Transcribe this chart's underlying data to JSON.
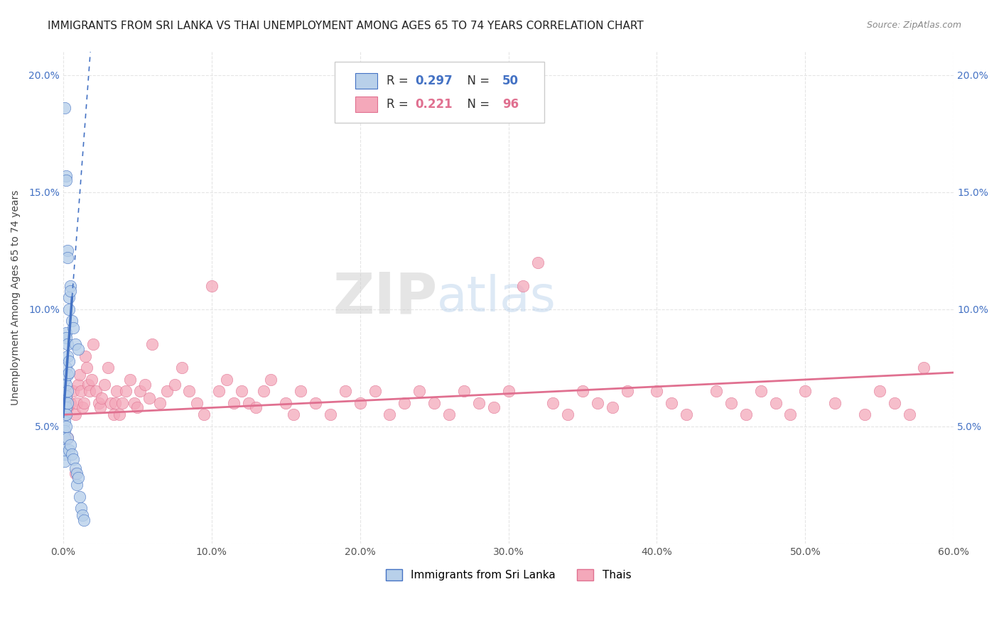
{
  "title": "IMMIGRANTS FROM SRI LANKA VS THAI UNEMPLOYMENT AMONG AGES 65 TO 74 YEARS CORRELATION CHART",
  "source": "Source: ZipAtlas.com",
  "ylabel": "Unemployment Among Ages 65 to 74 years",
  "xlim": [
    0.0,
    0.6
  ],
  "ylim": [
    0.0,
    0.21
  ],
  "xticks": [
    0.0,
    0.1,
    0.2,
    0.3,
    0.4,
    0.5,
    0.6
  ],
  "xticklabels": [
    "0.0%",
    "10.0%",
    "20.0%",
    "30.0%",
    "40.0%",
    "50.0%",
    "60.0%"
  ],
  "yticks": [
    0.0,
    0.05,
    0.1,
    0.15,
    0.2
  ],
  "yticklabels": [
    "",
    "5.0%",
    "10.0%",
    "15.0%",
    "20.0%"
  ],
  "blue_r": "0.297",
  "blue_n": "50",
  "pink_r": "0.221",
  "pink_n": "96",
  "blue_scatter_x": [
    0.001,
    0.001,
    0.001,
    0.001,
    0.001,
    0.001,
    0.001,
    0.001,
    0.001,
    0.001,
    0.002,
    0.002,
    0.002,
    0.002,
    0.002,
    0.002,
    0.002,
    0.002,
    0.002,
    0.002,
    0.003,
    0.003,
    0.003,
    0.003,
    0.003,
    0.003,
    0.003,
    0.003,
    0.004,
    0.004,
    0.004,
    0.004,
    0.004,
    0.005,
    0.005,
    0.005,
    0.006,
    0.006,
    0.007,
    0.007,
    0.008,
    0.008,
    0.009,
    0.009,
    0.01,
    0.01,
    0.011,
    0.012,
    0.013,
    0.014
  ],
  "blue_scatter_y": [
    0.186,
    0.07,
    0.06,
    0.055,
    0.052,
    0.048,
    0.045,
    0.04,
    0.038,
    0.035,
    0.157,
    0.155,
    0.09,
    0.088,
    0.075,
    0.068,
    0.063,
    0.058,
    0.055,
    0.05,
    0.125,
    0.122,
    0.085,
    0.08,
    0.072,
    0.065,
    0.06,
    0.045,
    0.105,
    0.1,
    0.078,
    0.073,
    0.04,
    0.11,
    0.108,
    0.042,
    0.095,
    0.038,
    0.092,
    0.036,
    0.085,
    0.032,
    0.03,
    0.025,
    0.083,
    0.028,
    0.02,
    0.015,
    0.012,
    0.01
  ],
  "pink_scatter_x": [
    0.002,
    0.003,
    0.005,
    0.007,
    0.008,
    0.009,
    0.01,
    0.011,
    0.012,
    0.013,
    0.014,
    0.015,
    0.016,
    0.017,
    0.018,
    0.019,
    0.02,
    0.022,
    0.024,
    0.025,
    0.026,
    0.028,
    0.03,
    0.032,
    0.034,
    0.035,
    0.036,
    0.038,
    0.04,
    0.042,
    0.045,
    0.048,
    0.05,
    0.052,
    0.055,
    0.058,
    0.06,
    0.065,
    0.07,
    0.075,
    0.08,
    0.085,
    0.09,
    0.095,
    0.1,
    0.105,
    0.11,
    0.115,
    0.12,
    0.125,
    0.13,
    0.135,
    0.14,
    0.15,
    0.155,
    0.16,
    0.17,
    0.18,
    0.19,
    0.2,
    0.21,
    0.22,
    0.23,
    0.24,
    0.25,
    0.26,
    0.27,
    0.28,
    0.29,
    0.3,
    0.31,
    0.32,
    0.33,
    0.34,
    0.35,
    0.36,
    0.37,
    0.38,
    0.4,
    0.41,
    0.42,
    0.44,
    0.45,
    0.46,
    0.47,
    0.48,
    0.49,
    0.5,
    0.52,
    0.54,
    0.55,
    0.56,
    0.57,
    0.58,
    0.003,
    0.008
  ],
  "pink_scatter_y": [
    0.055,
    0.058,
    0.06,
    0.065,
    0.055,
    0.06,
    0.068,
    0.072,
    0.065,
    0.058,
    0.06,
    0.08,
    0.075,
    0.068,
    0.065,
    0.07,
    0.085,
    0.065,
    0.06,
    0.058,
    0.062,
    0.068,
    0.075,
    0.06,
    0.055,
    0.06,
    0.065,
    0.055,
    0.06,
    0.065,
    0.07,
    0.06,
    0.058,
    0.065,
    0.068,
    0.062,
    0.085,
    0.06,
    0.065,
    0.068,
    0.075,
    0.065,
    0.06,
    0.055,
    0.11,
    0.065,
    0.07,
    0.06,
    0.065,
    0.06,
    0.058,
    0.065,
    0.07,
    0.06,
    0.055,
    0.065,
    0.06,
    0.055,
    0.065,
    0.06,
    0.065,
    0.055,
    0.06,
    0.065,
    0.06,
    0.055,
    0.065,
    0.06,
    0.058,
    0.065,
    0.11,
    0.12,
    0.06,
    0.055,
    0.065,
    0.06,
    0.058,
    0.065,
    0.065,
    0.06,
    0.055,
    0.065,
    0.06,
    0.055,
    0.065,
    0.06,
    0.055,
    0.065,
    0.06,
    0.055,
    0.065,
    0.06,
    0.055,
    0.075,
    0.045,
    0.03
  ],
  "blue_line_color": "#4472c4",
  "pink_line_color": "#e07090",
  "scatter_blue_color": "#b8d0ea",
  "scatter_pink_color": "#f4a8ba",
  "grid_color": "#e5e5e5",
  "background_color": "#ffffff",
  "watermark_text": "ZIPAtlas",
  "title_fontsize": 11,
  "axis_label_fontsize": 10,
  "tick_fontsize": 10,
  "legend_label_sri_lanka": "Immigrants from Sri Lanka",
  "legend_label_thais": "Thais",
  "blue_trendline_slope": 8.5,
  "blue_trendline_intercept": 0.054,
  "pink_trendline_slope": 0.03,
  "pink_trendline_intercept": 0.055
}
